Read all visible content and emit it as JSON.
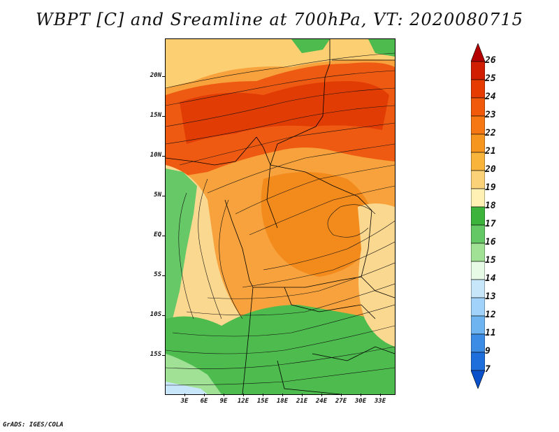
{
  "title": "WBPT [C] and Sreamline at 700hPa, VT: 2020080715",
  "footer": "GrADS: IGES/COLA",
  "lat_labels": [
    "20N",
    "15N",
    "10N",
    "5N",
    "EQ",
    "5S",
    "10S",
    "15S"
  ],
  "lon_labels": [
    "3E",
    "6E",
    "9E",
    "12E",
    "15E",
    "18E",
    "21E",
    "24E",
    "27E",
    "30E",
    "33E"
  ],
  "colorbar": {
    "levels": [
      "26",
      "25",
      "24",
      "23",
      "22",
      "21",
      "20",
      "19",
      "18",
      "17",
      "16",
      "15",
      "14",
      "13",
      "12",
      "11",
      "9",
      "7"
    ],
    "colors": [
      "#b40000",
      "#d21e00",
      "#e63c00",
      "#f05a0a",
      "#f57814",
      "#f7961e",
      "#f9b43c",
      "#fbd278",
      "#fff0b4",
      "#3cb43c",
      "#64c864",
      "#a0e196",
      "#e6fae6",
      "#c8e6fa",
      "#a0d2fa",
      "#6eb4f0",
      "#3c8ce6",
      "#1e6edc",
      "#0a50c8"
    ]
  }
}
